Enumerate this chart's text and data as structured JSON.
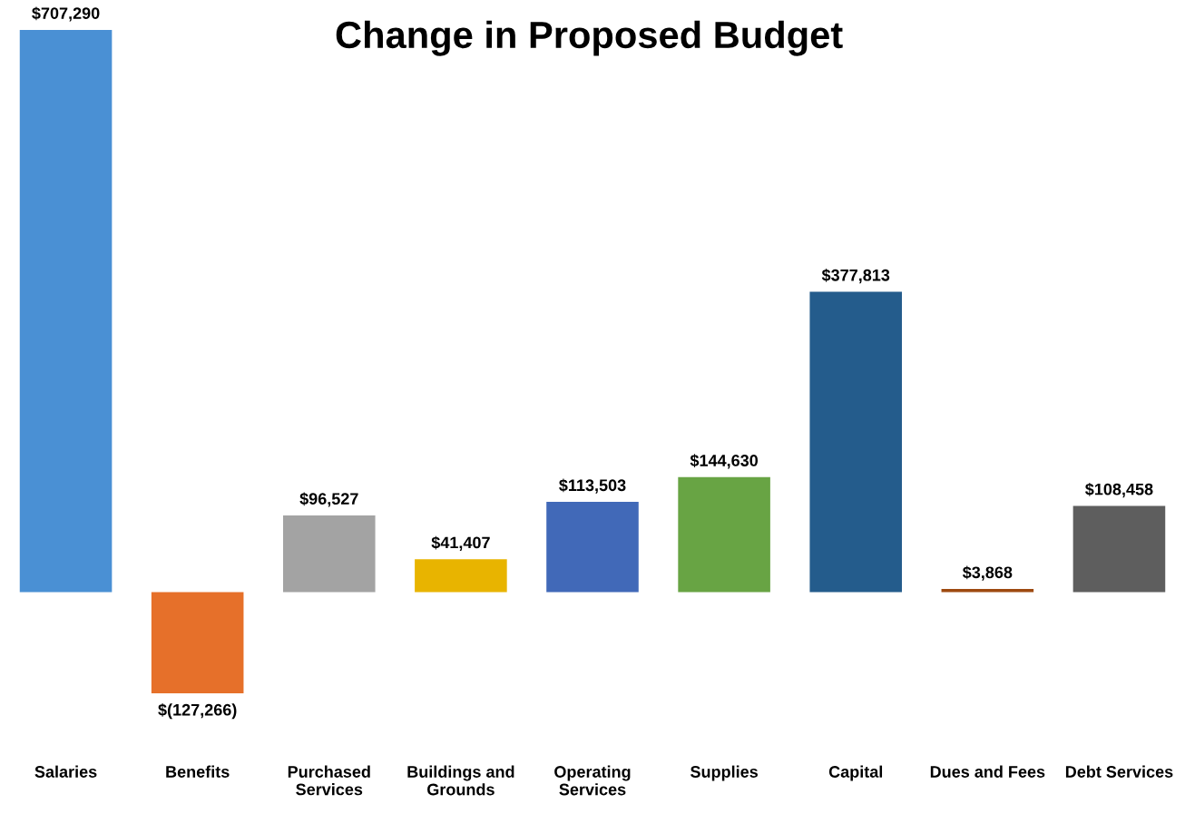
{
  "chart_data": {
    "type": "bar",
    "title": "Change in Proposed Budget",
    "categories": [
      "Salaries",
      "Benefits",
      "Purchased\nServices",
      "Buildings and\nGrounds",
      "Operating\nServices",
      "Supplies",
      "Capital",
      "Dues and Fees",
      "Debt Services"
    ],
    "values": [
      707290,
      -127266,
      96527,
      41407,
      113503,
      144630,
      377813,
      3868,
      108458
    ],
    "value_labels": [
      "$707,290",
      "$(127,266)",
      "$96,527",
      "$41,407",
      "$113,503",
      "$144,630",
      "$377,813",
      "$3,868",
      "$108,458"
    ],
    "colors": [
      "#4a90d4",
      "#e6702a",
      "#a3a3a3",
      "#e8b400",
      "#4169b8",
      "#68a444",
      "#245c8c",
      "#9e4a10",
      "#5e5e5e"
    ],
    "grid": false,
    "legend": false
  }
}
